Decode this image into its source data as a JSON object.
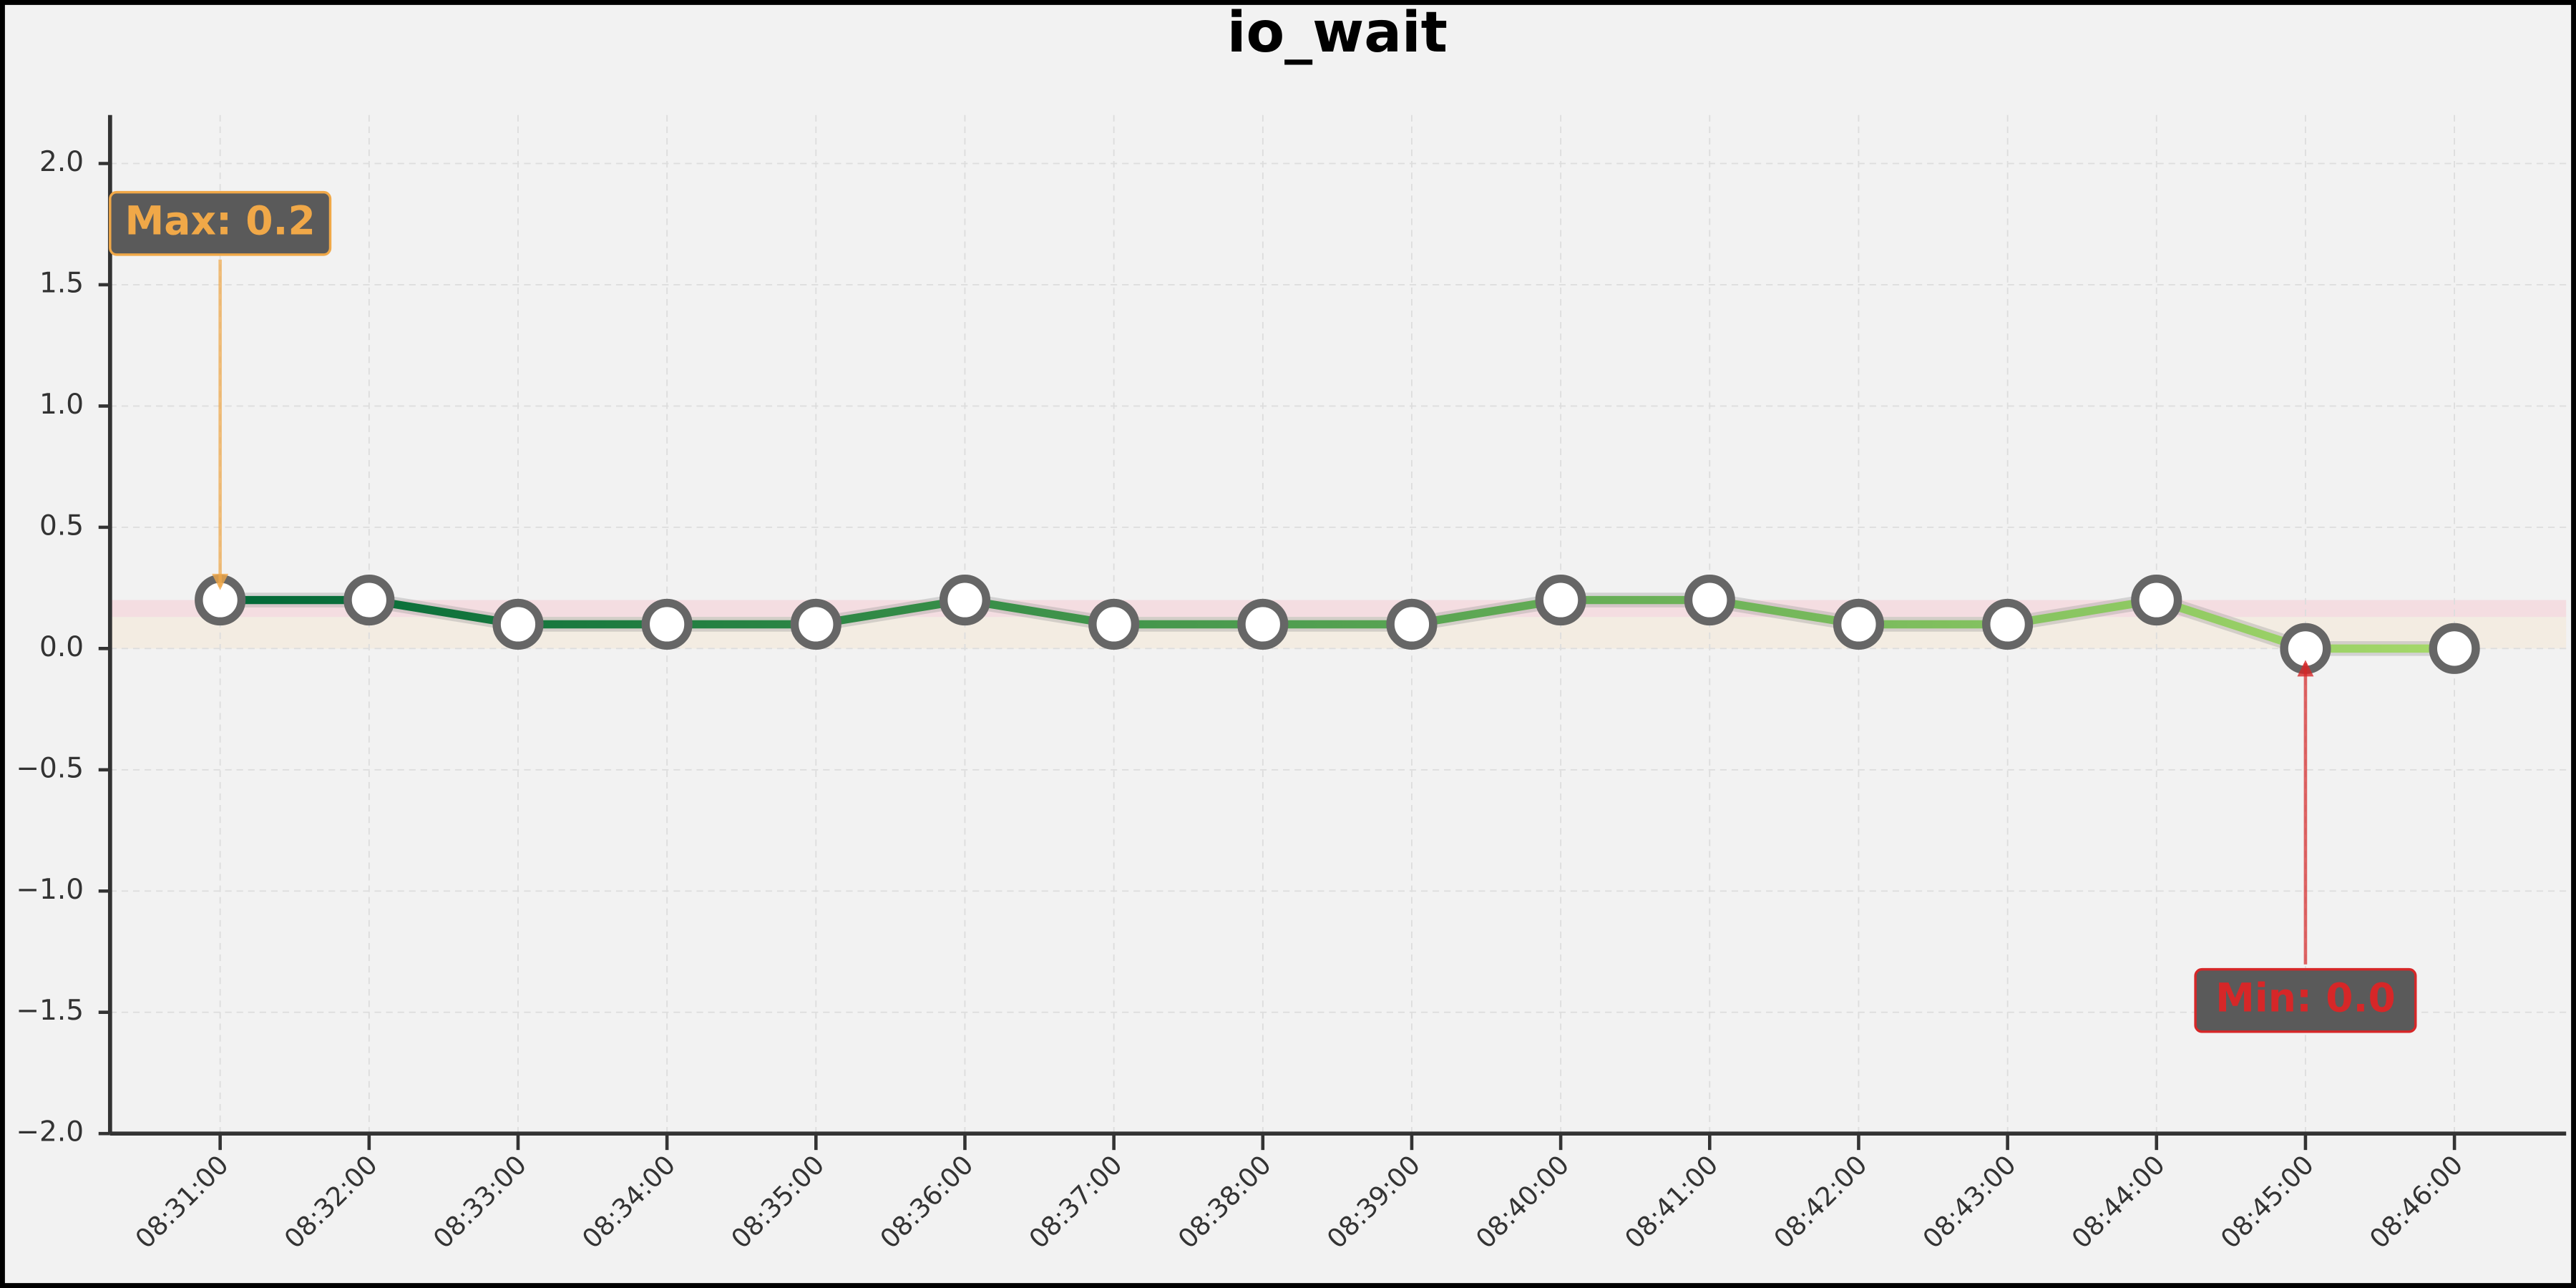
{
  "chart_data": {
    "type": "line",
    "title": "io_wait",
    "categories": [
      "08:31:00",
      "08:32:00",
      "08:33:00",
      "08:34:00",
      "08:35:00",
      "08:36:00",
      "08:37:00",
      "08:38:00",
      "08:39:00",
      "08:40:00",
      "08:41:00",
      "08:42:00",
      "08:43:00",
      "08:44:00",
      "08:45:00",
      "08:46:00"
    ],
    "series": [
      {
        "values": [
          0.2,
          0.2,
          0.1,
          0.1,
          0.1,
          0.2,
          0.1,
          0.1,
          0.1,
          0.2,
          0.2,
          0.1,
          0.1,
          0.2,
          0.0,
          0.0
        ],
        "color_start": "#006837",
        "color_end": "#a6d96a"
      }
    ],
    "ylim": [
      -2.0,
      2.2
    ],
    "yticks": [
      {
        "value": -2.0,
        "label": "−2.0"
      },
      {
        "value": -1.5,
        "label": "−1.5"
      },
      {
        "value": -1.0,
        "label": "−1.0"
      },
      {
        "value": -0.5,
        "label": "−0.5"
      },
      {
        "value": 0,
        "label": "0.0"
      },
      {
        "value": 0.5,
        "label": "0.5"
      },
      {
        "value": 1.0,
        "label": "1.0"
      },
      {
        "value": 1.5,
        "label": "1.5"
      },
      {
        "value": 2.0,
        "label": "2.0"
      }
    ],
    "grid": true,
    "bands": [
      {
        "from": 0.13,
        "to": 0.2,
        "color": "#f4d7dc"
      },
      {
        "from": 0,
        "to": 0.13,
        "color": "#f3eadd"
      }
    ],
    "annotations": [
      {
        "text": "Max: 0.2",
        "kind": "max",
        "color": "#f0a848"
      },
      {
        "text": "Min: 0.0",
        "kind": "min",
        "color": "#d62728"
      }
    ]
  }
}
